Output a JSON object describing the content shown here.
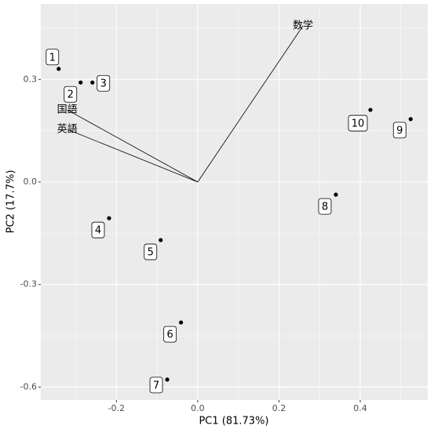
{
  "chart_data": {
    "type": "scatter",
    "x_label": "PC1 (81.73%)",
    "y_label": "PC2 (17.7%)",
    "xlim": [
      -0.386,
      0.566
    ],
    "ylim": [
      -0.638,
      0.521
    ],
    "xticks": [
      -0.2,
      {
        "value": 0,
        "label": "0.0"
      },
      0.2,
      0.4
    ],
    "yticks": [
      -0.6,
      -0.3,
      {
        "value": 0,
        "label": "0.0"
      },
      0.3
    ],
    "grid": true,
    "series": [
      {
        "color": "#000000",
        "labels": [
          "1",
          "2",
          "3",
          "4",
          "5",
          "6",
          "7",
          "8",
          "9",
          "10"
        ],
        "x": [
          -0.342,
          -0.288,
          -0.259,
          -0.218,
          -0.091,
          -0.041,
          -0.075,
          0.34,
          0.524,
          0.425
        ],
        "values": [
          0.331,
          0.291,
          0.291,
          -0.106,
          -0.17,
          -0.411,
          -0.578,
          -0.037,
          0.184,
          0.211
        ]
      }
    ],
    "loadings": [
      {
        "name": "数学",
        "x": 0.259,
        "y": 0.457
      },
      {
        "name": "国語",
        "x": -0.321,
        "y": 0.211
      },
      {
        "name": "英語",
        "x": -0.321,
        "y": 0.154
      }
    ]
  }
}
